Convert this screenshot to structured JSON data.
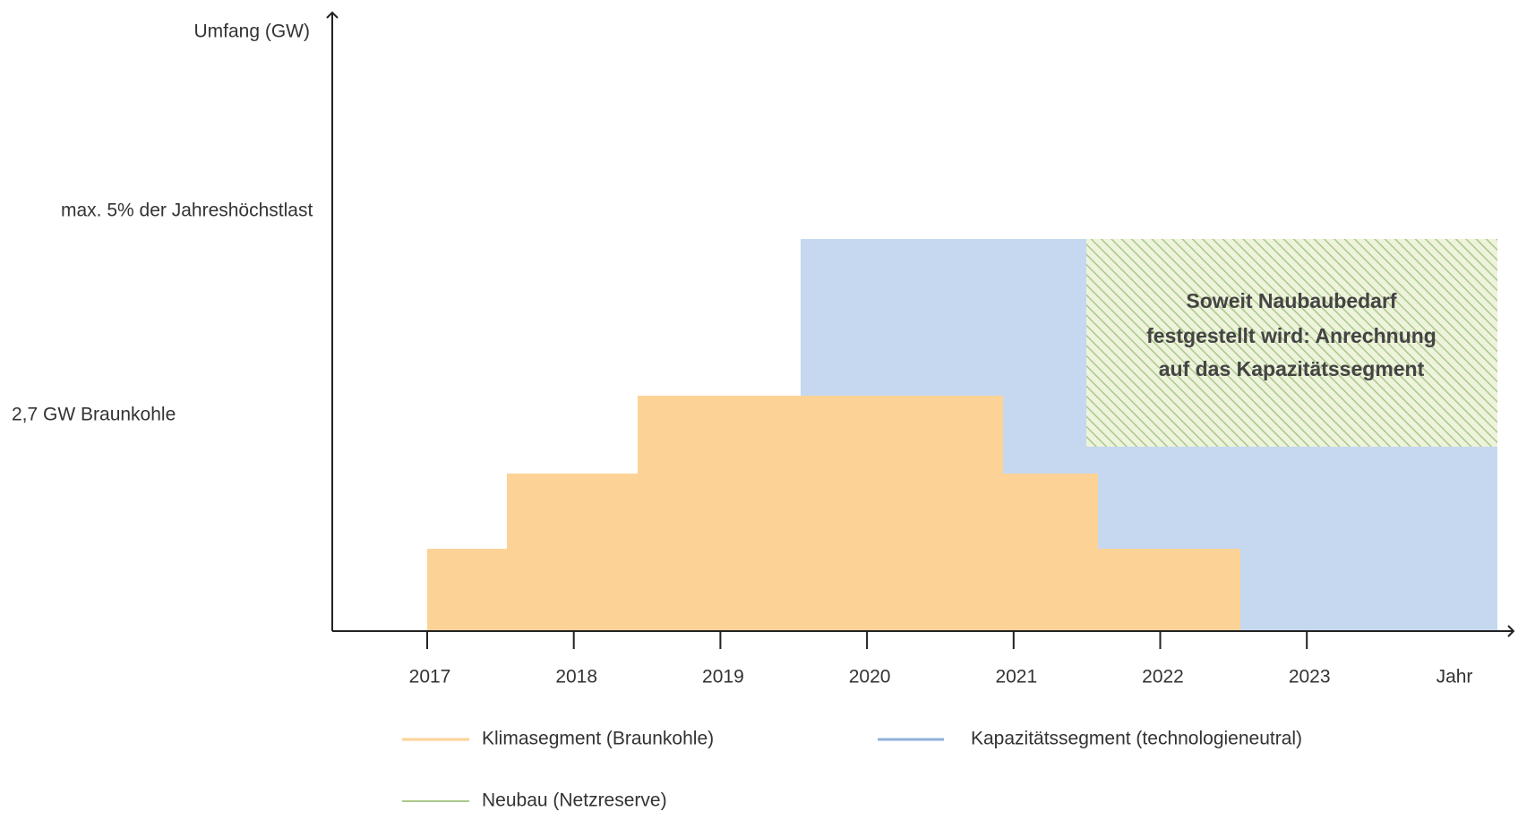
{
  "y_axis_label": "Umfang (GW)",
  "x_axis_label": "Jahr",
  "y_labels": [
    "max. 5% der Jahreshöchstlast",
    "2,7 GW Braunkohle"
  ],
  "x_ticks": [
    "2017",
    "2018",
    "2019",
    "2020",
    "2021",
    "2022",
    "2023"
  ],
  "annotation": [
    "Soweit Naubaubedarf",
    "festgestellt wird: Anrechnung",
    "auf das Kapazitätssegment"
  ],
  "legend": [
    "Klimasegment (Braunkohle)",
    "Kapazitätssegment (technologieneutral)",
    "Neubau (Netzreserve)"
  ]
}
